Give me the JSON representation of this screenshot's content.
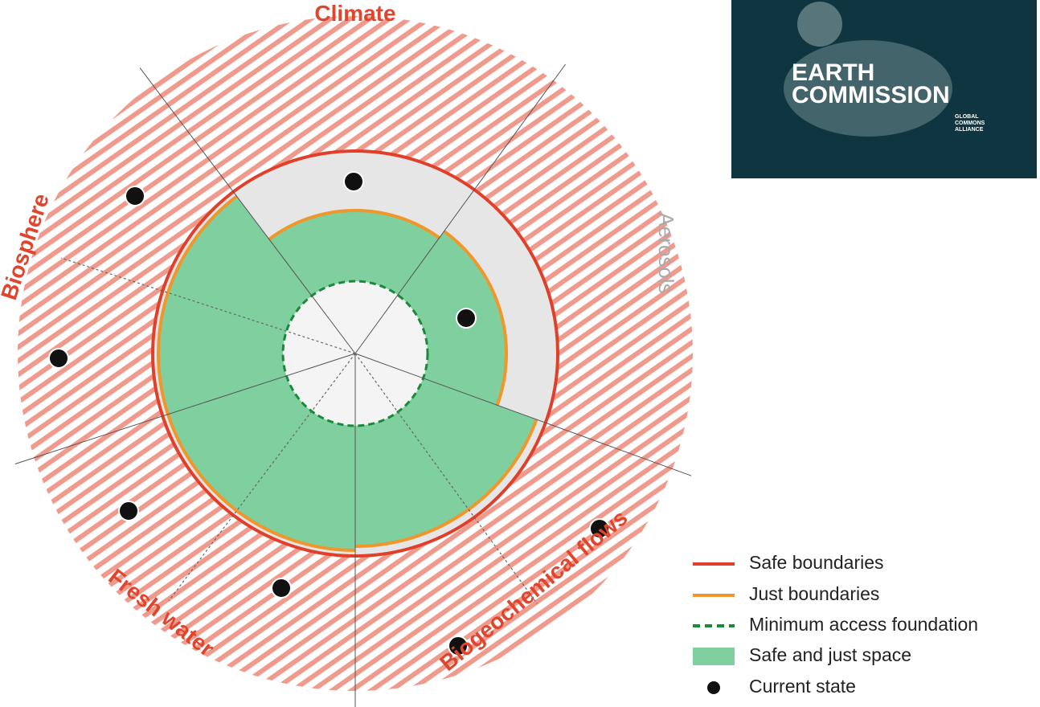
{
  "diagram": {
    "sectors": [
      {
        "label": "Climate"
      },
      {
        "label": "Aerosols"
      },
      {
        "label": "Biogeochemical flows"
      },
      {
        "label": "Fresh water"
      },
      {
        "label": "Biosphere"
      }
    ],
    "legend": [
      {
        "label": "Safe boundaries"
      },
      {
        "label": "Just boundaries"
      },
      {
        "label": "Minimum access foundation"
      },
      {
        "label": "Safe and just space"
      },
      {
        "label": "Current state"
      }
    ],
    "logo": {
      "line1": "EARTH",
      "line2": "COMMISSION",
      "tagline": [
        "GLOBAL",
        "COMMONS",
        "ALLIANCE"
      ]
    }
  }
}
